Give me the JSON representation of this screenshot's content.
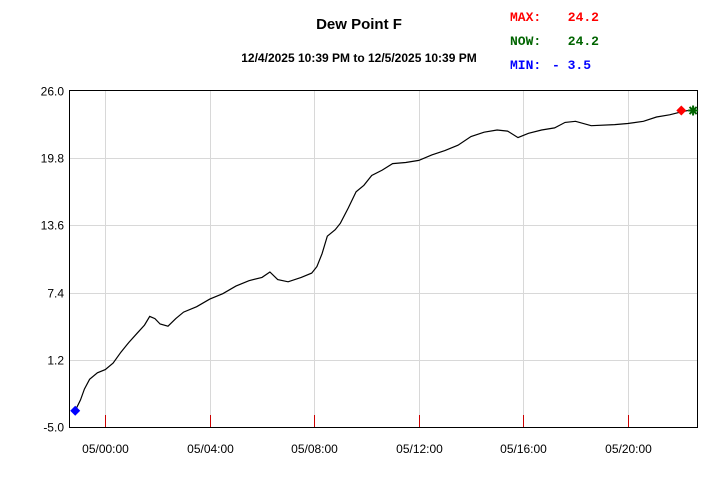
{
  "chart_data": {
    "type": "line",
    "title": "Dew Point F",
    "subtitle": "12/4/2025 10:39 PM to 12/5/2025 10:39 PM",
    "stats": [
      {
        "label": "MAX:",
        "value": "24.2",
        "color": "#ff0000"
      },
      {
        "label": "NOW:",
        "value": "24.2",
        "color": "#006400"
      },
      {
        "label": "MIN:",
        "value": "- 3.5",
        "color": "#0000ff"
      }
    ],
    "ylim": [
      -5.0,
      26.0
    ],
    "yticks": [
      "26.0",
      "19.8",
      "13.6",
      "7.4",
      "1.2",
      "-5.0"
    ],
    "xlim_hours": [
      -1.35,
      22.65
    ],
    "xticks": [
      {
        "label": "05/00:00",
        "h": 0
      },
      {
        "label": "05/04:00",
        "h": 4
      },
      {
        "label": "05/08:00",
        "h": 8
      },
      {
        "label": "05/12:00",
        "h": 12
      },
      {
        "label": "05/16:00",
        "h": 16
      },
      {
        "label": "05/20:00",
        "h": 20
      }
    ],
    "grid": true,
    "line_color": "#000000",
    "series": [
      {
        "points": [
          [
            -1.15,
            -3.5
          ],
          [
            -0.95,
            -2.5
          ],
          [
            -0.8,
            -1.5
          ],
          [
            -0.6,
            -0.6
          ],
          [
            -0.3,
            0.0
          ],
          [
            0.0,
            0.3
          ],
          [
            0.3,
            0.9
          ],
          [
            0.6,
            1.9
          ],
          [
            0.9,
            2.8
          ],
          [
            1.2,
            3.6
          ],
          [
            1.5,
            4.4
          ],
          [
            1.7,
            5.2
          ],
          [
            1.9,
            5.0
          ],
          [
            2.1,
            4.5
          ],
          [
            2.4,
            4.3
          ],
          [
            2.7,
            5.0
          ],
          [
            3.0,
            5.6
          ],
          [
            3.5,
            6.1
          ],
          [
            4.0,
            6.8
          ],
          [
            4.5,
            7.3
          ],
          [
            5.0,
            8.0
          ],
          [
            5.5,
            8.5
          ],
          [
            6.0,
            8.8
          ],
          [
            6.3,
            9.3
          ],
          [
            6.6,
            8.6
          ],
          [
            7.0,
            8.4
          ],
          [
            7.5,
            8.8
          ],
          [
            7.9,
            9.2
          ],
          [
            8.1,
            9.8
          ],
          [
            8.3,
            11.0
          ],
          [
            8.5,
            12.6
          ],
          [
            8.8,
            13.2
          ],
          [
            9.0,
            13.8
          ],
          [
            9.3,
            15.2
          ],
          [
            9.6,
            16.7
          ],
          [
            9.9,
            17.3
          ],
          [
            10.2,
            18.2
          ],
          [
            10.6,
            18.7
          ],
          [
            11.0,
            19.3
          ],
          [
            11.5,
            19.4
          ],
          [
            12.0,
            19.6
          ],
          [
            12.5,
            20.1
          ],
          [
            13.0,
            20.5
          ],
          [
            13.5,
            21.0
          ],
          [
            14.0,
            21.8
          ],
          [
            14.5,
            22.2
          ],
          [
            15.0,
            22.4
          ],
          [
            15.4,
            22.3
          ],
          [
            15.8,
            21.7
          ],
          [
            16.2,
            22.1
          ],
          [
            16.7,
            22.4
          ],
          [
            17.2,
            22.6
          ],
          [
            17.6,
            23.1
          ],
          [
            18.0,
            23.2
          ],
          [
            18.6,
            22.8
          ],
          [
            19.5,
            22.9
          ],
          [
            20.0,
            23.0
          ],
          [
            20.6,
            23.2
          ],
          [
            21.1,
            23.6
          ],
          [
            21.6,
            23.8
          ],
          [
            22.1,
            24.1
          ],
          [
            22.3,
            24.2
          ]
        ]
      }
    ],
    "markers": [
      {
        "name": "min",
        "x": -1.15,
        "y": -3.5,
        "color": "#0000ff",
        "shape": "diamond"
      },
      {
        "name": "max",
        "x": 22.05,
        "y": 24.2,
        "color": "#ff0000",
        "shape": "diamond"
      },
      {
        "name": "now",
        "x": 22.5,
        "y": 24.2,
        "color": "#006400",
        "shape": "star"
      }
    ]
  }
}
